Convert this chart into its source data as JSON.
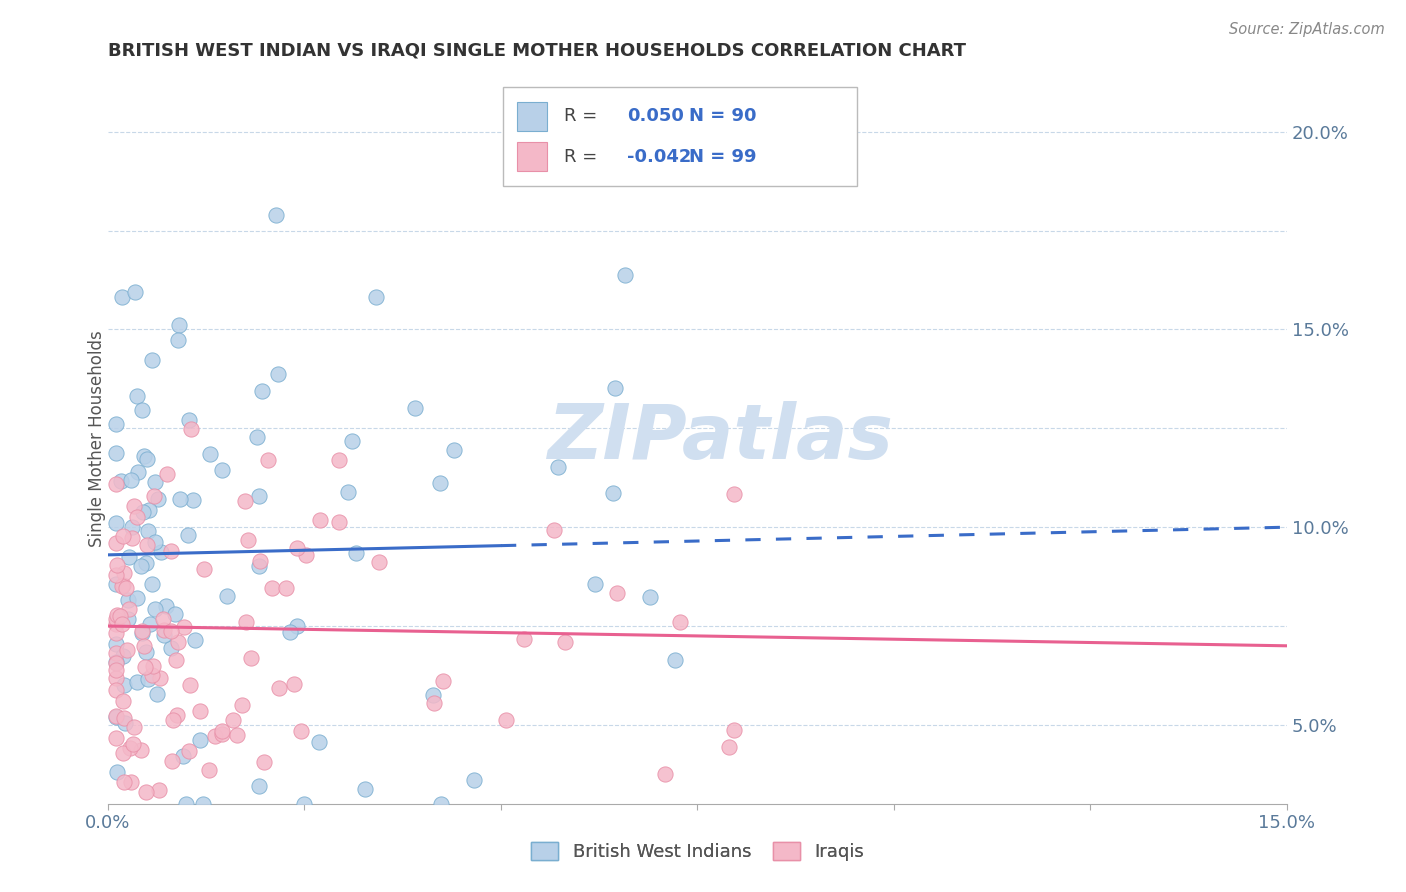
{
  "title": "BRITISH WEST INDIAN VS IRAQI SINGLE MOTHER HOUSEHOLDS CORRELATION CHART",
  "source": "Source: ZipAtlas.com",
  "ylabel": "Single Mother Households",
  "xlim": [
    0.0,
    0.15
  ],
  "ylim": [
    0.03,
    0.215
  ],
  "blue_R": 0.05,
  "blue_N": 90,
  "pink_R": -0.042,
  "pink_N": 99,
  "blue_color": "#b8d0e8",
  "blue_edge": "#7aaed0",
  "pink_color": "#f4b8c8",
  "pink_edge": "#e890a8",
  "blue_line_color": "#3a6cc8",
  "pink_line_color": "#e86090",
  "watermark_color": "#d0dff0",
  "blue_trend_start_y": 0.093,
  "blue_trend_end_y": 0.1,
  "pink_trend_start_y": 0.075,
  "pink_trend_end_y": 0.07,
  "y_ticks": [
    0.05,
    0.075,
    0.1,
    0.125,
    0.15,
    0.175,
    0.2
  ],
  "y_tick_labels": [
    "5.0%",
    "",
    "10.0%",
    "",
    "15.0%",
    "",
    "20.0%"
  ]
}
